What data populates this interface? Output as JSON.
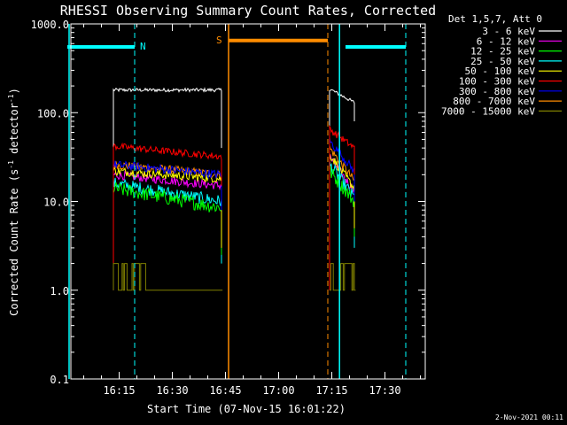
{
  "chart_data": {
    "type": "line",
    "title": "RHESSI Observing Summary Count Rates, Corrected",
    "xlabel": "Start Time (07-Nov-15 16:01:22)",
    "ylabel": "Corrected Count Rate (s",
    "ylabel_sup1": "-1",
    "ylabel_mid": " detector",
    "ylabel_sup2": "-1",
    "ylabel_end": ")",
    "yscale": "log",
    "ylim": [
      0.1,
      1000
    ],
    "xlim_minutes": [
      0,
      100
    ],
    "y_ticks": [
      {
        "value": 1000,
        "label": "1000.0"
      },
      {
        "value": 100,
        "label": "100.0"
      },
      {
        "value": 10,
        "label": "10.0"
      },
      {
        "value": 1,
        "label": "1.0"
      },
      {
        "value": 0.1,
        "label": "0.1"
      }
    ],
    "x_ticks": [
      {
        "minute": 13.63,
        "label": "16:15"
      },
      {
        "minute": 28.63,
        "label": "16:30"
      },
      {
        "minute": 43.63,
        "label": "16:45"
      },
      {
        "minute": 58.63,
        "label": "17:00"
      },
      {
        "minute": 73.63,
        "label": "17:15"
      },
      {
        "minute": 88.63,
        "label": "17:30"
      }
    ],
    "legend": {
      "header": "Det 1,5,7, Att 0",
      "placement": "top-right",
      "items": [
        {
          "label": "3 - 6 keV",
          "color": "#ffffff"
        },
        {
          "label": "6 - 12 keV",
          "color": "#ff00ff"
        },
        {
          "label": "12 - 25 keV",
          "color": "#00ff00"
        },
        {
          "label": "25 - 50 keV",
          "color": "#00ffff"
        },
        {
          "label": "50 - 100 keV",
          "color": "#ffff00"
        },
        {
          "label": "100 - 300 keV",
          "color": "#ff0000"
        },
        {
          "label": "300 - 800 keV",
          "color": "#0000ff"
        },
        {
          "label": "800 - 7000 keV",
          "color": "#ff8c00"
        },
        {
          "label": "7000 - 15000 keV",
          "color": "#808000"
        }
      ]
    },
    "intervals": [
      {
        "start": 12.0,
        "end": 42.5
      },
      {
        "start": 73.0,
        "end": 80.0
      }
    ],
    "series": [
      {
        "name": "3 - 6 keV",
        "color": "#ffffff",
        "seg1": [
          180,
          180
        ],
        "seg2": [
          185,
          130
        ],
        "noise": 0.02
      },
      {
        "name": "800 - 7000 keV",
        "color": "#ff8c00",
        "seg1": [
          26,
          20
        ],
        "seg2": [
          40,
          17
        ],
        "noise": 0.05
      },
      {
        "name": "6 - 12 keV",
        "color": "#ff00ff",
        "seg1": [
          20,
          15
        ],
        "seg2": [
          32,
          13
        ],
        "noise": 0.05
      },
      {
        "name": "25 - 50 keV",
        "color": "#00ffff",
        "seg1": [
          16,
          10
        ],
        "seg2": [
          26,
          11
        ],
        "noise": 0.07
      },
      {
        "name": "12 - 25 keV",
        "color": "#00ff00",
        "seg1": [
          14,
          8.5
        ],
        "seg2": [
          22,
          10
        ],
        "noise": 0.08
      },
      {
        "name": "50 - 100 keV",
        "color": "#ffff00",
        "seg1": [
          22,
          18
        ],
        "seg2": [
          34,
          14
        ],
        "noise": 0.05
      },
      {
        "name": "300 - 800 keV",
        "color": "#0000ff",
        "seg1": [
          26,
          20
        ],
        "seg2": [
          48,
          22
        ],
        "noise": 0.05
      },
      {
        "name": "100 - 300 keV",
        "color": "#ff0000",
        "seg1": [
          42,
          32
        ],
        "seg2": [
          65,
          40
        ],
        "noise": 0.04
      },
      {
        "name": "7000 - 15000 keV",
        "color": "#808000",
        "seg1": [
          1.5,
          1.0
        ],
        "seg2": [
          1.5,
          1.0
        ],
        "noise": 0
      }
    ],
    "spacecraft_flags": [
      {
        "label": "N",
        "color": "#00ffff",
        "start": -1,
        "end": 18,
        "level": 550
      },
      {
        "label": "S",
        "color": "#ff8c00",
        "start": 44.5,
        "end": 72.5,
        "level": 650
      },
      {
        "label": "",
        "color": "#00ffff",
        "start": 77.5,
        "end": 94.5,
        "level": 550
      }
    ],
    "vertical_markers": [
      {
        "minute": -0.5,
        "color": "#00ffff",
        "style": "solid"
      },
      {
        "minute": 18,
        "color": "#00ffff",
        "style": "dashed"
      },
      {
        "minute": 44.5,
        "color": "#ff8c00",
        "style": "solid"
      },
      {
        "minute": 72.5,
        "color": "#ff8c00",
        "style": "dashed"
      },
      {
        "minute": 75.8,
        "color": "#00ffff",
        "style": "solid"
      },
      {
        "minute": 94.5,
        "color": "#00ffff",
        "style": "dashed"
      }
    ]
  },
  "footer": {
    "timestamp": "2-Nov-2021 00:11"
  }
}
